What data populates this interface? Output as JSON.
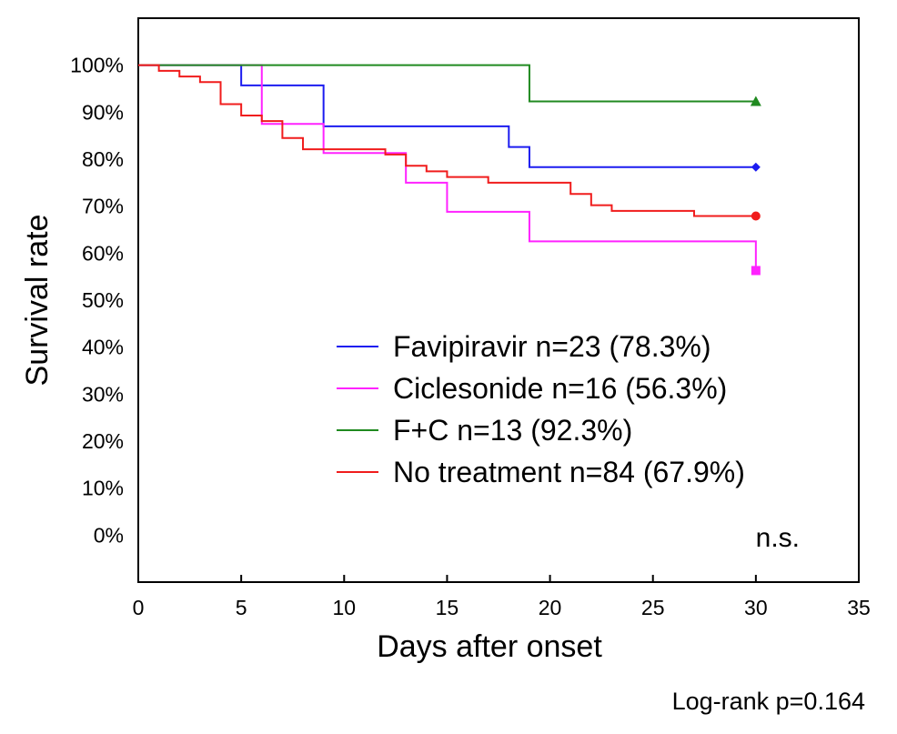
{
  "chart_data": {
    "type": "line",
    "subtype": "kaplan-meier-step",
    "xlabel": "Days after onset",
    "ylabel": "Survival rate",
    "xlim": [
      0,
      35
    ],
    "ylim": [
      -10,
      110
    ],
    "x_ticks": [
      "0",
      "5",
      "10",
      "15",
      "20",
      "25",
      "30",
      "35"
    ],
    "x_tick_values": [
      0,
      5,
      10,
      15,
      20,
      25,
      30,
      35
    ],
    "y_ticks": [
      "0%",
      "10%",
      "20%",
      "30%",
      "40%",
      "50%",
      "60%",
      "70%",
      "80%",
      "90%",
      "100%"
    ],
    "y_tick_values": [
      0,
      10,
      20,
      30,
      40,
      50,
      60,
      70,
      80,
      90,
      100
    ],
    "grid": false,
    "legend_position": "lower-right",
    "series": [
      {
        "name": "Favipiravir n=23 (78.3%)",
        "color": "#1c1cf0",
        "marker": "diamond",
        "steps": [
          [
            0,
            100
          ],
          [
            5,
            95.7
          ],
          [
            9,
            87.0
          ],
          [
            18,
            82.6
          ],
          [
            19,
            78.3
          ],
          [
            30,
            78.3
          ]
        ]
      },
      {
        "name": "Ciclesonide n=16 (56.3%)",
        "color": "#ff22ff",
        "marker": "square",
        "steps": [
          [
            0,
            100
          ],
          [
            6,
            87.5
          ],
          [
            9,
            81.3
          ],
          [
            13,
            75.0
          ],
          [
            15,
            68.8
          ],
          [
            19,
            62.5
          ],
          [
            30,
            56.3
          ]
        ]
      },
      {
        "name": "F+C n=13 (92.3%)",
        "color": "#208a20",
        "marker": "triangle",
        "steps": [
          [
            0,
            100
          ],
          [
            19,
            92.3
          ],
          [
            30,
            92.3
          ]
        ]
      },
      {
        "name": "No treatment n=84 (67.9%)",
        "color": "#f01c1c",
        "marker": "circle",
        "steps": [
          [
            0,
            100
          ],
          [
            1,
            98.8
          ],
          [
            2,
            97.6
          ],
          [
            3,
            96.4
          ],
          [
            4,
            91.7
          ],
          [
            5,
            89.3
          ],
          [
            6,
            88.1
          ],
          [
            7,
            84.5
          ],
          [
            8,
            82.1
          ],
          [
            12,
            81.0
          ],
          [
            13,
            78.6
          ],
          [
            14,
            77.4
          ],
          [
            15,
            76.2
          ],
          [
            17,
            75.0
          ],
          [
            21,
            72.6
          ],
          [
            22,
            70.2
          ],
          [
            23,
            69.0
          ],
          [
            27,
            67.9
          ],
          [
            30,
            67.9
          ]
        ]
      }
    ],
    "annotations": {
      "significance": "n.s.",
      "test": "Log-rank p=0.164"
    }
  }
}
